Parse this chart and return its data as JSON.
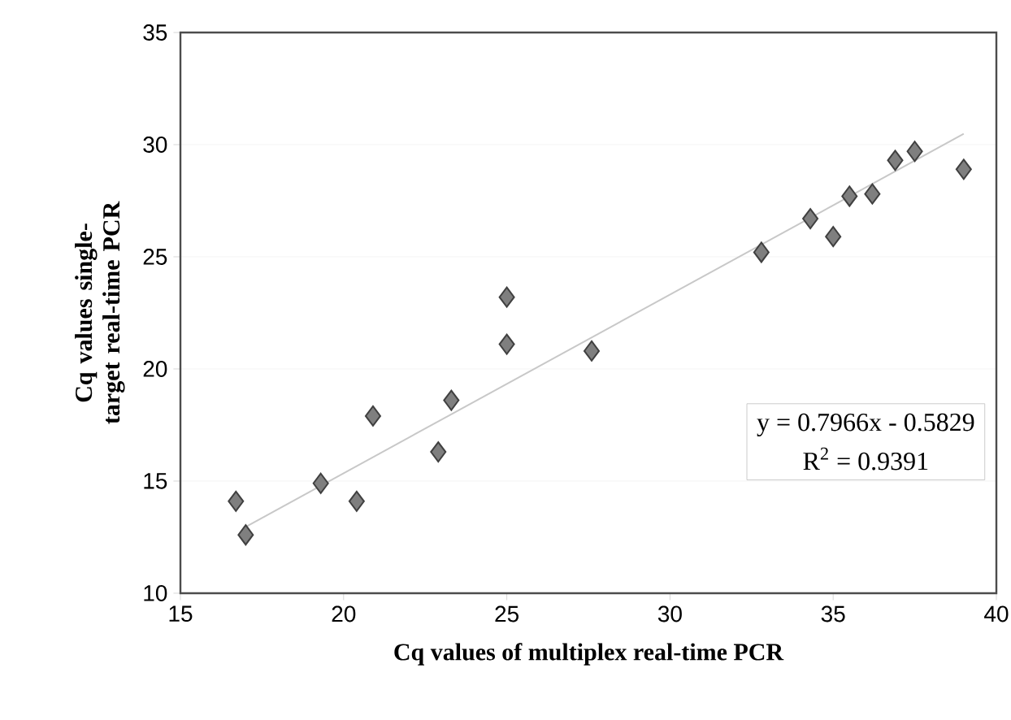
{
  "chart_data": {
    "type": "scatter",
    "xlabel": "Cq values of multiplex real-time PCR",
    "ylabel": "Cq values single-target real-time PCR",
    "xlim": [
      15,
      40
    ],
    "ylim": [
      10,
      35
    ],
    "xticks": [
      15,
      20,
      25,
      30,
      35,
      40
    ],
    "yticks": [
      10,
      15,
      20,
      25,
      30,
      35
    ],
    "grid": "y",
    "marker": "diamond",
    "series": [
      {
        "color": "#7f7f7f",
        "x": [
          16.7,
          17.0,
          19.3,
          20.4,
          20.9,
          22.9,
          23.3,
          25.0,
          25.0,
          27.6,
          32.8,
          34.3,
          35.0,
          35.5,
          36.2,
          36.9,
          37.5,
          39.0
        ],
        "values": [
          14.1,
          12.6,
          14.9,
          14.1,
          17.9,
          16.3,
          18.6,
          21.1,
          23.2,
          20.8,
          25.2,
          26.7,
          25.9,
          27.7,
          27.8,
          29.3,
          29.7,
          28.9
        ]
      },
      {
        "type": "line",
        "color": "#c8c8c8",
        "marker": "none",
        "x": [
          17.0,
          39.0
        ],
        "values": [
          12.96,
          30.48
        ]
      }
    ],
    "annotations": [
      "y = 0.7966x - 0.5829",
      "R$^{2}$ = 0.9391"
    ]
  }
}
